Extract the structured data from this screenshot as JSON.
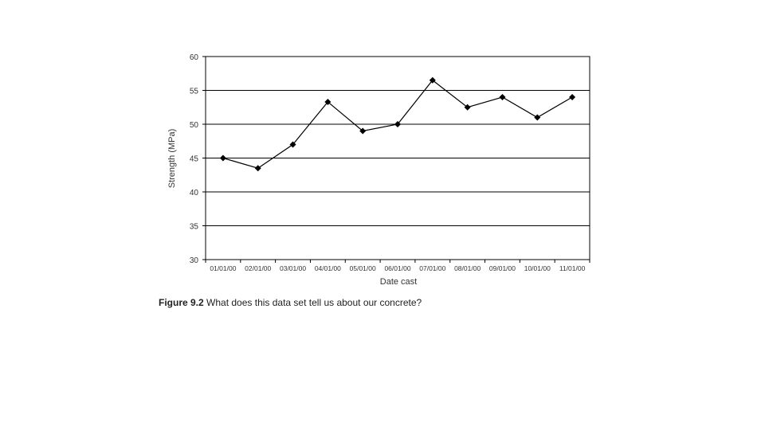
{
  "chart_data": {
    "type": "line",
    "title": "",
    "xlabel": "Date cast",
    "ylabel": "Strength (MPa)",
    "categories": [
      "01/01/00",
      "02/01/00",
      "03/01/00",
      "04/01/00",
      "05/01/00",
      "06/01/00",
      "07/01/00",
      "08/01/00",
      "09/01/00",
      "10/01/00",
      "11/01/00"
    ],
    "values": [
      45,
      43.5,
      47,
      53.3,
      49,
      50,
      56.5,
      52.5,
      54,
      51,
      54
    ],
    "ylim": [
      30,
      60
    ],
    "yticks": [
      30,
      35,
      40,
      45,
      50,
      55,
      60
    ],
    "grid": "horizontal",
    "marker": "diamond",
    "line_color": "#000000"
  },
  "caption": {
    "label": "Figure 9.2",
    "text": "What does this data set tell us about our concrete?"
  }
}
